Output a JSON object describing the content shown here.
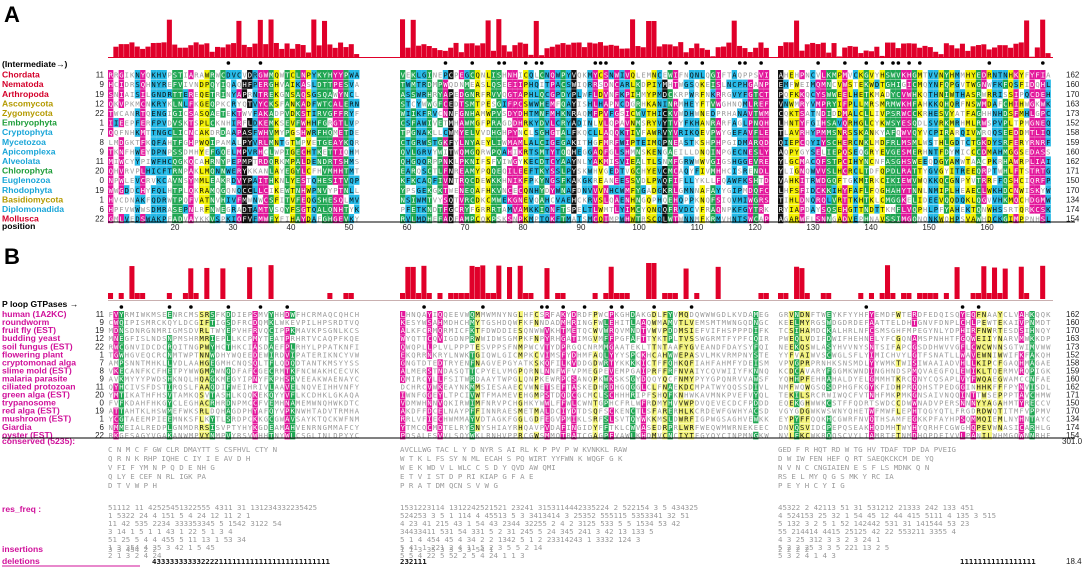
{
  "colors": {
    "hist": "#e0002a",
    "green": "#1fa652",
    "magenta": "#e3169b",
    "yellow": "#f2f000",
    "cyan": "#23b8e6",
    "black": "#111111",
    "pale_yellow": "#f3f37a",
    "grey_text": "#9a9a9a",
    "taxon_red": "#d4002a",
    "taxon_olive": "#b49a00",
    "taxon_green": "#1f9e3a",
    "taxon_cyan": "#1aa6d8",
    "label_magenta": "#d0109a"
  },
  "panelA": {
    "letter": "A",
    "header_label": "(Intermediate→)",
    "position_label": "position",
    "taxa": [
      {
        "name": "Chordata",
        "color": "taxon_red",
        "start": "11",
        "end": "162"
      },
      {
        "name": "Nematoda",
        "color": "taxon_red",
        "start": "9",
        "end": "160"
      },
      {
        "name": "Arthropoda",
        "color": "taxon_red",
        "start": "19",
        "end": "170"
      },
      {
        "name": "Ascomycota",
        "color": "taxon_olive",
        "start": "12",
        "end": "163"
      },
      {
        "name": "Zygomycota",
        "color": "taxon_olive",
        "start": "22",
        "end": "173"
      },
      {
        "name": "Embryophyta",
        "color": "taxon_green",
        "start": "1",
        "end": "152"
      },
      {
        "name": "Cryptophyta",
        "color": "taxon_cyan",
        "start": "7",
        "end": "158"
      },
      {
        "name": "Mycetozoa",
        "color": "taxon_cyan",
        "start": "8",
        "end": "159"
      },
      {
        "name": "Apicomplexa",
        "color": "taxon_cyan",
        "start": "9",
        "end": "160"
      },
      {
        "name": "Alveolata",
        "color": "taxon_cyan",
        "start": "11",
        "end": "162"
      },
      {
        "name": "Chlorophyta",
        "color": "taxon_green",
        "start": "20",
        "end": "171"
      },
      {
        "name": "Euglenozoa",
        "color": "taxon_cyan",
        "start": "0",
        "end": "150"
      },
      {
        "name": "Rhodophyta",
        "color": "taxon_cyan",
        "start": "19",
        "end": "170"
      },
      {
        "name": "Basidiomycota",
        "color": "taxon_olive",
        "start": "1",
        "end": "134"
      },
      {
        "name": "Diplomonadida",
        "color": "taxon_cyan",
        "start": "6",
        "end": "174"
      },
      {
        "name": "Mollusca",
        "color": "taxon_red",
        "start": "22",
        "end": "154"
      }
    ],
    "ticks": [
      "20",
      "30",
      "40",
      "50",
      "60",
      "70",
      "80",
      "90",
      "100",
      "110",
      "120",
      "130",
      "140",
      "150",
      "160"
    ]
  },
  "panelB": {
    "letter": "B",
    "header_label": "P loop GTPases →",
    "taxa": [
      {
        "name": "human (1A2KC)",
        "start": "11",
        "end": "162"
      },
      {
        "name": "roundworm",
        "start": "9",
        "end": "160"
      },
      {
        "name": "fruit fly (EST)",
        "start": "19",
        "end": "170"
      },
      {
        "name": "budding yeast",
        "start": "12",
        "end": "163"
      },
      {
        "name": "soil fungus (EST)",
        "start": "22",
        "end": "173"
      },
      {
        "name": "flowering plant",
        "start": "1",
        "end": "152"
      },
      {
        "name": "cryptomonad alga",
        "start": "7",
        "end": "158"
      },
      {
        "name": "slime mold (EST)",
        "start": "8",
        "end": "159"
      },
      {
        "name": "malaria parasite",
        "start": "9",
        "end": "160"
      },
      {
        "name": "ciliated protozoan",
        "start": "11",
        "end": "162"
      },
      {
        "name": "green alga (EST)",
        "start": "20",
        "end": "171"
      },
      {
        "name": "trypanosome",
        "start": "0",
        "end": "150"
      },
      {
        "name": "red alga (EST)",
        "start": "19",
        "end": "170"
      },
      {
        "name": "mushroom (EST)",
        "start": "1",
        "end": "134"
      },
      {
        "name": "Giardia",
        "start": "6",
        "end": "174"
      },
      {
        "name": "oyster (EST)",
        "start": "22",
        "end": "154"
      }
    ],
    "conserved_label": "conserved (5235):",
    "conserved_value": "301.0",
    "res_freq_label": "res_freq :",
    "insertions_label": "insertions",
    "deletions_label": "deletions",
    "deletions_value": "18.4",
    "deletions_seq_1": "4333333333322221111111111111111111111111",
    "deletions_seq_2": "232111",
    "deletions_seq_3": "11111111111111111"
  }
}
